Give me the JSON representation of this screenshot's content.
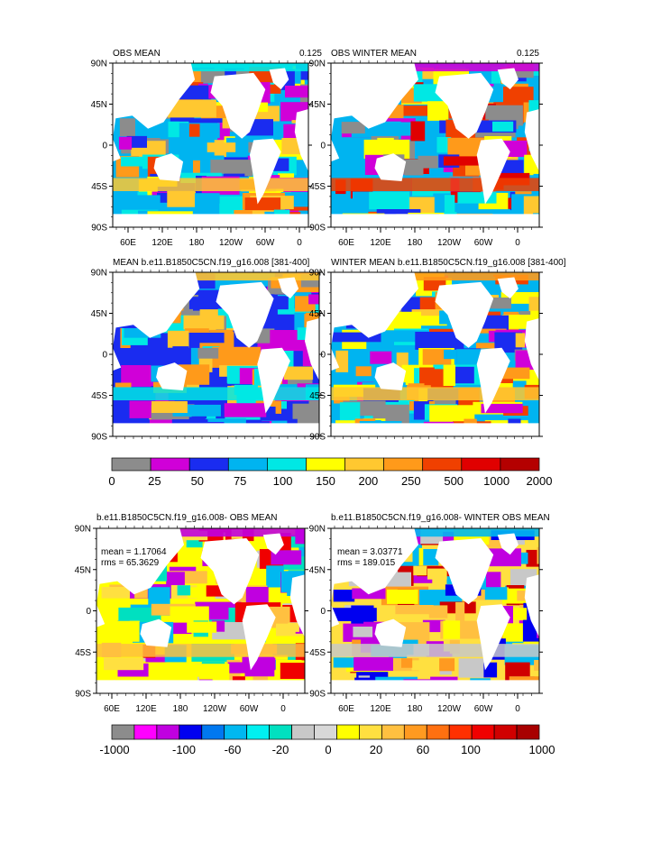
{
  "chart_data": [
    {
      "type": "heatmap",
      "title": "OBS MEAN",
      "right_label": "0.125",
      "yticks": [
        "90N",
        "45N",
        "0",
        "45S",
        "90S"
      ],
      "xticks": [
        "60E",
        "120E",
        "180",
        "120W",
        "60W",
        "0"
      ]
    },
    {
      "type": "heatmap",
      "title": "OBS WINTER MEAN",
      "right_label": "0.125",
      "yticks": [
        "90N",
        "45N",
        "0",
        "45S",
        "90S"
      ],
      "xticks": [
        "60E",
        "120E",
        "180",
        "120W",
        "60W",
        "0"
      ]
    },
    {
      "type": "heatmap",
      "title": "MEAN b.e11.B1850C5CN.f19_g16.008 [381-400]",
      "yticks": [
        "90N",
        "45N",
        "0",
        "45S",
        "90S"
      ],
      "xticks": []
    },
    {
      "type": "heatmap",
      "title": "WINTER MEAN b.e11.B1850C5CN.f19_g16.008 [381-400]",
      "yticks": [
        "90N",
        "45N",
        "0",
        "45S",
        "90S"
      ],
      "xticks": []
    },
    {
      "type": "heatmap",
      "title": "b.e11.B1850C5CN.f19_g16.008- OBS MEAN",
      "mean_label": "mean = 1.17064",
      "rms_label": "rms = 65.3629",
      "yticks": [
        "90N",
        "45N",
        "0",
        "45S",
        "90S"
      ],
      "xticks": [
        "60E",
        "120E",
        "180",
        "120W",
        "60W",
        "0"
      ]
    },
    {
      "type": "heatmap",
      "title": "b.e11.B1850C5CN.f19_g16.008- WINTER OBS MEAN",
      "mean_label": "mean = 3.03771",
      "rms_label": "rms = 189.015",
      "yticks": [
        "90N",
        "45N",
        "0",
        "45S",
        "90S"
      ],
      "xticks": [
        "60E",
        "120E",
        "180",
        "120W",
        "60W",
        "0"
      ]
    }
  ],
  "colorbar_top": {
    "labels": [
      "0",
      "25",
      "50",
      "75",
      "100",
      "150",
      "200",
      "250",
      "500",
      "1000",
      "2000"
    ],
    "colors": [
      "#8c8c8c",
      "#d000d8",
      "#1a2cf0",
      "#00b4f0",
      "#00e8e4",
      "#ffff00",
      "#ffc830",
      "#ff9a1a",
      "#f04000",
      "#e00000",
      "#b40000"
    ]
  },
  "colorbar_bottom": {
    "labels": [
      "-1000",
      "-100",
      "-60",
      "-20",
      "0",
      "20",
      "60",
      "100",
      "1000"
    ],
    "colors": [
      "#8c8c8c",
      "#ff00ff",
      "#c000e0",
      "#0000f0",
      "#0078f0",
      "#00b8f0",
      "#00f0f0",
      "#00e0c0",
      "#c8c8c8",
      "#d8d8d8",
      "#ffff00",
      "#ffe040",
      "#ffc040",
      "#ff9a20",
      "#ff7010",
      "#ff3000",
      "#f00000",
      "#d00000",
      "#a80000"
    ]
  },
  "fills": {
    "obs_mean": [
      "#00b4f0",
      "#1a2cf0",
      "#d000d8",
      "#8c8c8c",
      "#ffc830",
      "#00e8e4",
      "#ff9a1a",
      "#f04000",
      "#ffff00"
    ],
    "obs_winter": [
      "#00b4f0",
      "#00e8e4",
      "#ffc830",
      "#ff9a1a",
      "#f04000",
      "#d000d8",
      "#8c8c8c",
      "#1a2cf0",
      "#ffff00",
      "#e00000"
    ],
    "model_mean": [
      "#1a2cf0",
      "#00b4f0",
      "#d000d8",
      "#8c8c8c",
      "#00e8e4",
      "#ffc830",
      "#ff9a1a"
    ],
    "model_winter": [
      "#00b4f0",
      "#00e8e4",
      "#1a2cf0",
      "#d000d8",
      "#ffc830",
      "#ff9a1a",
      "#ffff00",
      "#8c8c8c",
      "#f04000"
    ],
    "diff_mean": [
      "#ffff00",
      "#ffe040",
      "#c8c8c8",
      "#00e0c0",
      "#ffc040",
      "#c000e0",
      "#f00000",
      "#00b8f0"
    ],
    "diff_winter": [
      "#ffe040",
      "#ffc040",
      "#ff9a20",
      "#ffff00",
      "#c8c8c8",
      "#00b8f0",
      "#c000e0",
      "#d00000",
      "#0000f0"
    ],
    "land": "#ffffff",
    "axis": "#000000"
  }
}
